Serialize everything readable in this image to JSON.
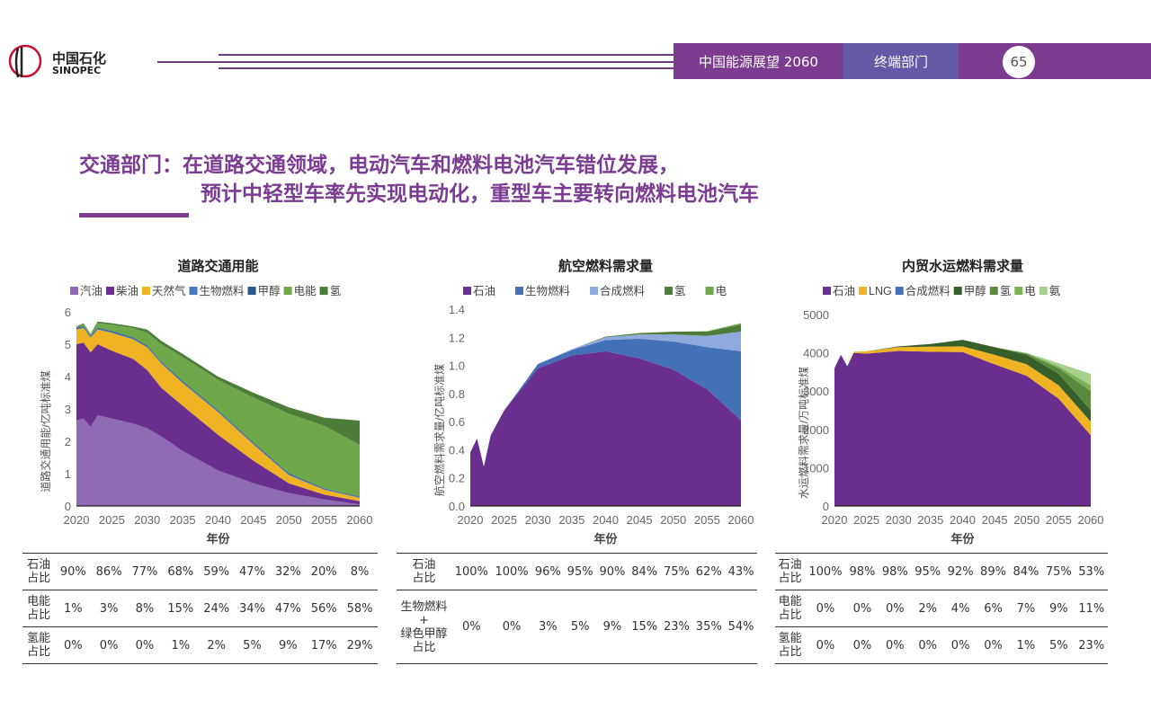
{
  "logo": {
    "cn": "中国石化",
    "en": "SINOPEC"
  },
  "header": {
    "report": "中国能源展望 2060",
    "section": "终端部门",
    "page": "65"
  },
  "title": {
    "line1": "交通部门：在道路交通领域，电动汽车和燃料电池汽车错位发展，",
    "line2": "预计中轻型车率先实现电动化，重型车主要转向燃料电池汽车"
  },
  "chart_data": [
    {
      "type": "area",
      "stacked": true,
      "title": "道路交通用能",
      "xlabel": "年份",
      "ylabel": "道路交通用能/亿吨标准煤",
      "ylim": [
        0,
        6
      ],
      "yticks": [
        0,
        1,
        2,
        3,
        4,
        5,
        6
      ],
      "ytick_labels": [
        "0",
        "1",
        "2",
        "3",
        "4",
        "5",
        "6"
      ],
      "xticks": [
        2020,
        2025,
        2030,
        2035,
        2040,
        2045,
        2050,
        2055,
        2060
      ],
      "legend": "top",
      "x": [
        2020,
        2021,
        2022,
        2023,
        2025,
        2028,
        2030,
        2032,
        2035,
        2040,
        2045,
        2050,
        2055,
        2060
      ],
      "series": [
        {
          "name": "汽油",
          "color": "#8e6bb3",
          "values": [
            2.65,
            2.7,
            2.45,
            2.8,
            2.7,
            2.55,
            2.4,
            2.15,
            1.7,
            1.1,
            0.7,
            0.4,
            0.2,
            0.05
          ]
        },
        {
          "name": "柴油",
          "color": "#6a2f8e",
          "values": [
            2.35,
            2.35,
            2.3,
            2.2,
            2.1,
            2.0,
            1.8,
            1.5,
            1.4,
            1.1,
            0.7,
            0.3,
            0.15,
            0.1
          ]
        },
        {
          "name": "天然气",
          "color": "#f0b323",
          "values": [
            0.45,
            0.45,
            0.45,
            0.45,
            0.55,
            0.6,
            0.7,
            0.75,
            0.7,
            0.7,
            0.5,
            0.25,
            0.15,
            0.1
          ]
        },
        {
          "name": "生物燃料",
          "color": "#4a78c0",
          "values": [
            0.03,
            0.03,
            0.03,
            0.03,
            0.03,
            0.03,
            0.03,
            0.03,
            0.03,
            0.03,
            0.03,
            0.03,
            0.02,
            0.02
          ]
        },
        {
          "name": "甲醇",
          "color": "#2b5a8c",
          "values": [
            0.03,
            0.03,
            0.03,
            0.03,
            0.03,
            0.03,
            0.03,
            0.03,
            0.03,
            0.03,
            0.03,
            0.03,
            0.02,
            0.02
          ]
        },
        {
          "name": "电能",
          "color": "#6ea84a",
          "values": [
            0.02,
            0.06,
            0.04,
            0.14,
            0.19,
            0.29,
            0.39,
            0.54,
            0.74,
            0.94,
            1.39,
            1.84,
            1.94,
            1.6
          ]
        },
        {
          "name": "氢",
          "color": "#4e7d3a",
          "values": [
            0.02,
            0.03,
            0.02,
            0.05,
            0.05,
            0.05,
            0.1,
            0.1,
            0.1,
            0.1,
            0.15,
            0.2,
            0.25,
            0.75
          ]
        }
      ]
    },
    {
      "type": "area",
      "stacked": true,
      "title": "航空燃料需求量",
      "xlabel": "年份",
      "ylabel": "航空燃料需求量/亿吨标准煤",
      "ylim": [
        0,
        1.4
      ],
      "yticks": [
        0,
        0.2,
        0.4,
        0.6,
        0.8,
        1.0,
        1.2,
        1.4
      ],
      "ytick_labels": [
        "0.0",
        "0.2",
        "0.4",
        "0.6",
        "0.8",
        "1.0",
        "1.2",
        "1.4"
      ],
      "xticks": [
        2020,
        2025,
        2030,
        2035,
        2040,
        2045,
        2050,
        2055,
        2060
      ],
      "legend": "top",
      "x": [
        2020,
        2021,
        2022,
        2023,
        2025,
        2027,
        2030,
        2035,
        2040,
        2045,
        2050,
        2055,
        2060
      ],
      "series": [
        {
          "name": "石油",
          "color": "#6a2f8e",
          "values": [
            0.38,
            0.48,
            0.28,
            0.5,
            0.68,
            0.8,
            0.98,
            1.07,
            1.1,
            1.05,
            0.97,
            0.83,
            0.61
          ]
        },
        {
          "name": "生物燃料",
          "color": "#4470b8",
          "values": [
            0,
            0,
            0,
            0,
            0,
            0.01,
            0.03,
            0.04,
            0.08,
            0.14,
            0.2,
            0.3,
            0.49
          ]
        },
        {
          "name": "合成燃料",
          "color": "#8faadc",
          "values": [
            0,
            0,
            0,
            0,
            0,
            0,
            0,
            0.005,
            0.02,
            0.03,
            0.05,
            0.08,
            0.14
          ]
        },
        {
          "name": "氢",
          "color": "#4e7d3a",
          "values": [
            0,
            0,
            0,
            0,
            0,
            0,
            0,
            0,
            0.005,
            0.01,
            0.02,
            0.03,
            0.05
          ]
        },
        {
          "name": "电",
          "color": "#6ea84a",
          "values": [
            0,
            0,
            0,
            0,
            0,
            0,
            0,
            0,
            0,
            0,
            0,
            0.003,
            0.01
          ]
        }
      ]
    },
    {
      "type": "area",
      "stacked": true,
      "title": "内贸水运燃料需求量",
      "xlabel": "年份",
      "ylabel": "水运燃料需求量/万吨标准煤",
      "ylim": [
        0,
        5000
      ],
      "yticks": [
        0,
        1000,
        2000,
        3000,
        4000,
        5000
      ],
      "ytick_labels": [
        "0",
        "1000",
        "2000",
        "3000",
        "4000",
        "5000"
      ],
      "xticks": [
        2020,
        2025,
        2030,
        2035,
        2040,
        2045,
        2050,
        2055,
        2060
      ],
      "legend": "top",
      "x": [
        2020,
        2021,
        2022,
        2023,
        2025,
        2030,
        2035,
        2040,
        2045,
        2050,
        2055,
        2060
      ],
      "series": [
        {
          "name": "石油",
          "color": "#6a2f8e",
          "values": [
            3600,
            3950,
            3650,
            4000,
            3980,
            4050,
            4030,
            4020,
            3700,
            3400,
            2800,
            1850
          ]
        },
        {
          "name": "LNG",
          "color": "#f0b323",
          "values": [
            0,
            0,
            0,
            30,
            60,
            100,
            130,
            150,
            250,
            300,
            350,
            350
          ]
        },
        {
          "name": "合成燃料",
          "color": "#4470b8",
          "values": [
            0,
            0,
            0,
            0,
            0,
            0,
            0,
            0,
            0,
            0,
            0,
            0
          ]
        },
        {
          "name": "甲醇",
          "color": "#375f2a",
          "values": [
            0,
            0,
            0,
            0,
            0,
            20,
            70,
            170,
            200,
            250,
            300,
            300
          ]
        },
        {
          "name": "氢",
          "color": "#5a8a3e",
          "values": [
            0,
            0,
            0,
            0,
            0,
            0,
            0,
            0,
            0,
            30,
            150,
            500
          ]
        },
        {
          "name": "电",
          "color": "#7ab356",
          "values": [
            0,
            0,
            0,
            0,
            0,
            0,
            0,
            0,
            0,
            10,
            50,
            150
          ]
        },
        {
          "name": "氨",
          "color": "#a9cf8e",
          "values": [
            0,
            0,
            0,
            0,
            0,
            0,
            0,
            0,
            0,
            10,
            80,
            300
          ]
        }
      ]
    }
  ],
  "tables": [
    {
      "rows": [
        [
          "石油\n占比",
          "90%",
          "86%",
          "77%",
          "68%",
          "59%",
          "47%",
          "32%",
          "20%",
          "8%"
        ],
        [
          "电能\n占比",
          "1%",
          "3%",
          "8%",
          "15%",
          "24%",
          "34%",
          "47%",
          "56%",
          "58%"
        ],
        [
          "氢能\n占比",
          "0%",
          "0%",
          "0%",
          "1%",
          "2%",
          "5%",
          "9%",
          "17%",
          "29%"
        ]
      ]
    },
    {
      "rows": [
        [
          "石油\n占比",
          "100%",
          "100%",
          "96%",
          "95%",
          "90%",
          "84%",
          "75%",
          "62%",
          "43%"
        ],
        [
          "生物燃料\n+\n绿色甲醇\n占比",
          "0%",
          "0%",
          "3%",
          "5%",
          "9%",
          "15%",
          "23%",
          "35%",
          "54%"
        ]
      ]
    },
    {
      "rows": [
        [
          "石油\n占比",
          "100%",
          "98%",
          "98%",
          "95%",
          "92%",
          "89%",
          "84%",
          "75%",
          "53%"
        ],
        [
          "电能\n占比",
          "0%",
          "0%",
          "0%",
          "2%",
          "4%",
          "6%",
          "7%",
          "9%",
          "11%"
        ],
        [
          "氢能\n占比",
          "0%",
          "0%",
          "0%",
          "0%",
          "0%",
          "0%",
          "1%",
          "5%",
          "23%"
        ]
      ]
    }
  ]
}
